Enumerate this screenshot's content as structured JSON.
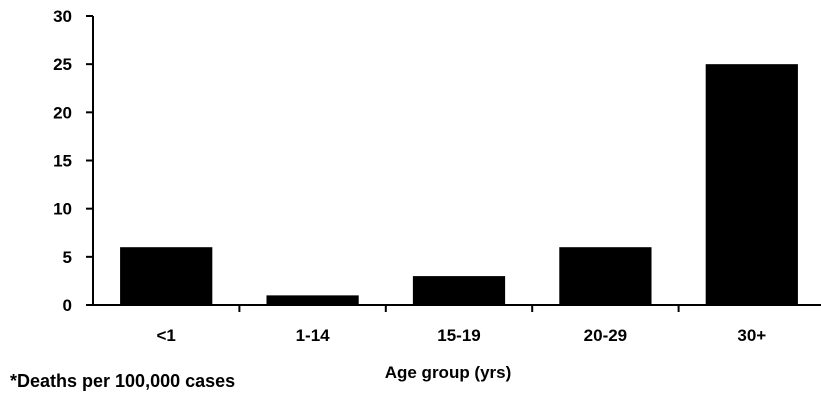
{
  "chart_data": {
    "type": "bar",
    "title": "",
    "xlabel": "Age group (yrs)",
    "ylabel": "",
    "categories": [
      "<1",
      "1-14",
      "15-19",
      "20-29",
      "30+"
    ],
    "values": [
      6,
      1,
      3,
      6,
      25
    ],
    "ylim": [
      0,
      30
    ],
    "yticks": [
      0,
      5,
      10,
      15,
      20,
      25,
      30
    ],
    "grid": false,
    "legend": "none",
    "bar_color": "#000000",
    "footnote": "*Deaths per 100,000 cases"
  }
}
